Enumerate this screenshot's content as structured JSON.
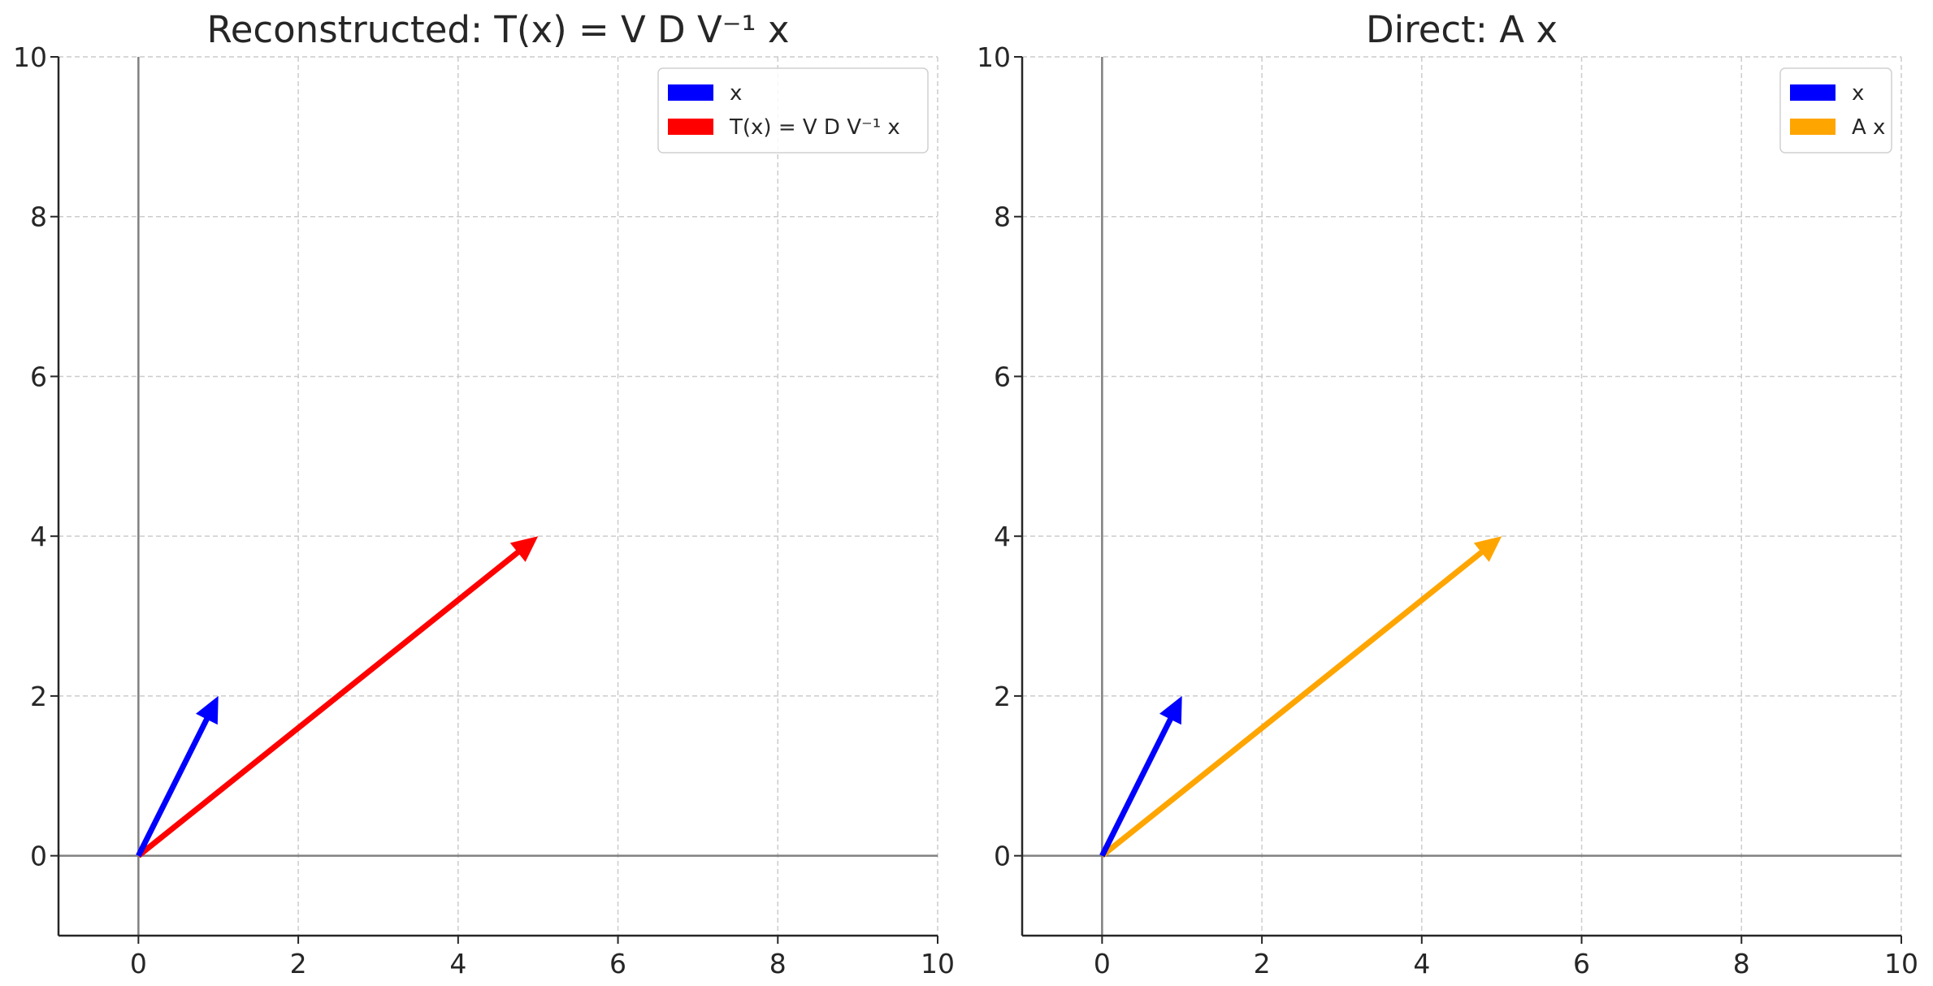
{
  "chart_data": [
    {
      "type": "quiver",
      "title": "Reconstructed: T(x) = V D V⁻¹ x",
      "xlabel": "",
      "ylabel": "",
      "xlim": [
        -1,
        10
      ],
      "ylim": [
        -1,
        10
      ],
      "xticks": [
        0,
        2,
        4,
        6,
        8,
        10
      ],
      "yticks": [
        0,
        2,
        4,
        6,
        8,
        10
      ],
      "grid": true,
      "legend_position": "top-right",
      "series": [
        {
          "name": "x",
          "color": "#0000ff",
          "origin": [
            0,
            0
          ],
          "vector": [
            1,
            2
          ]
        },
        {
          "name": "T(x) = V D V⁻¹ x",
          "color": "#ff0000",
          "origin": [
            0,
            0
          ],
          "vector": [
            5,
            4
          ]
        }
      ]
    },
    {
      "type": "quiver",
      "title": "Direct: A x",
      "xlabel": "",
      "ylabel": "",
      "xlim": [
        -1,
        10
      ],
      "ylim": [
        -1,
        10
      ],
      "xticks": [
        0,
        2,
        4,
        6,
        8,
        10
      ],
      "yticks": [
        0,
        2,
        4,
        6,
        8,
        10
      ],
      "grid": true,
      "legend_position": "top-right",
      "series": [
        {
          "name": "x",
          "color": "#0000ff",
          "origin": [
            0,
            0
          ],
          "vector": [
            1,
            2
          ]
        },
        {
          "name": "A x",
          "color": "#ffa500",
          "origin": [
            0,
            0
          ],
          "vector": [
            5,
            4
          ]
        }
      ]
    }
  ]
}
